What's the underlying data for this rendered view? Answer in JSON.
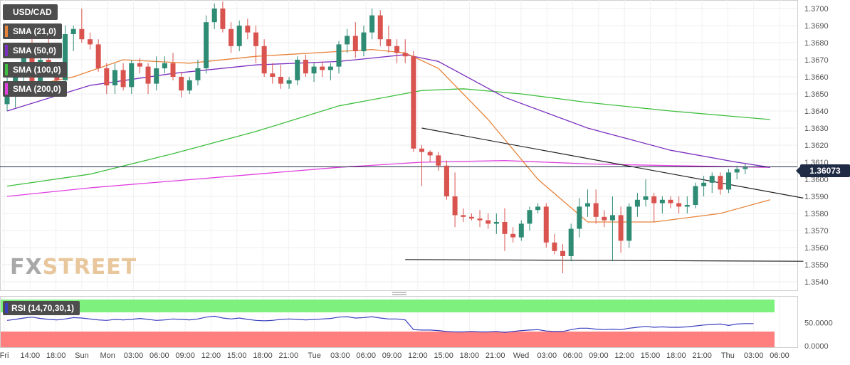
{
  "chart_data": {
    "type": "candlestick",
    "symbol": "USD/CAD",
    "price_axis": {
      "ticks": [
        "1.3700",
        "1.3690",
        "1.3680",
        "1.3670",
        "1.3660",
        "1.3650",
        "1.3640",
        "1.3630",
        "1.3620",
        "1.3610",
        "1.3600",
        "1.3590",
        "1.3580",
        "1.3570",
        "1.3560",
        "1.3550",
        "1.3540"
      ],
      "range": [
        1.3535,
        1.3705
      ]
    },
    "last_price_label": "1.36073",
    "last_price": 1.36073,
    "time_axis_labels": [
      "Fri",
      "14:00",
      "18:00",
      "Sun",
      "Mon",
      "03:00",
      "06:00",
      "09:00",
      "12:00",
      "15:00",
      "18:00",
      "21:00",
      "Tue",
      "03:00",
      "06:00",
      "09:00",
      "12:00",
      "15:00",
      "18:00",
      "21:00",
      "Wed",
      "03:00",
      "06:00",
      "09:00",
      "12:00",
      "15:00",
      "18:00",
      "21:00",
      "Thu",
      "03:00",
      "06:00"
    ],
    "legend": [
      {
        "label": "USD/CAD",
        "color": "#4d4d4d"
      },
      {
        "label": "SMA (21,0)",
        "color": "#e8833a"
      },
      {
        "label": "SMA (50,0)",
        "color": "#7b2fbe"
      },
      {
        "label": "SMA (100,0)",
        "color": "#3fbf3f"
      },
      {
        "label": "SMA (200,0)",
        "color": "#e040e0"
      }
    ],
    "colors": {
      "up": "#2e8b74",
      "down": "#d9534f",
      "sma21": "#e8833a",
      "sma50": "#7b2fbe",
      "sma100": "#3fbf3f",
      "sma200": "#e040e0",
      "trendline": "#222222",
      "rsi_line": "#3a3fbf",
      "rsi_top_band": "#7ef07e",
      "rsi_bottom_band": "#ff7f7f"
    },
    "candles": [
      [
        1.3644,
        1.366,
        1.364,
        1.365
      ],
      [
        1.365,
        1.3668,
        1.3642,
        1.3665
      ],
      [
        1.3665,
        1.368,
        1.3655,
        1.3672
      ],
      [
        1.3672,
        1.3682,
        1.365,
        1.3655
      ],
      [
        1.3655,
        1.368,
        1.3652,
        1.367
      ],
      [
        1.367,
        1.3688,
        1.366,
        1.3663
      ],
      [
        1.3663,
        1.3667,
        1.3652,
        1.3658
      ],
      [
        1.3658,
        1.369,
        1.3655,
        1.3685
      ],
      [
        1.3685,
        1.369,
        1.3675,
        1.3688
      ],
      [
        1.3688,
        1.37,
        1.368,
        1.3682
      ],
      [
        1.3682,
        1.3686,
        1.3676,
        1.3679
      ],
      [
        1.3679,
        1.3682,
        1.3663,
        1.3665
      ],
      [
        1.3665,
        1.3668,
        1.365,
        1.3655
      ],
      [
        1.3655,
        1.3668,
        1.365,
        1.3664
      ],
      [
        1.3664,
        1.3668,
        1.3652,
        1.3654
      ],
      [
        1.3654,
        1.367,
        1.365,
        1.3668
      ],
      [
        1.3668,
        1.3671,
        1.3662,
        1.3666
      ],
      [
        1.3666,
        1.3668,
        1.365,
        1.3656
      ],
      [
        1.3656,
        1.3672,
        1.3652,
        1.3665
      ],
      [
        1.3665,
        1.3672,
        1.3662,
        1.3668
      ],
      [
        1.3668,
        1.3674,
        1.3658,
        1.366
      ],
      [
        1.366,
        1.3663,
        1.3648,
        1.3652
      ],
      [
        1.3652,
        1.366,
        1.365,
        1.3658
      ],
      [
        1.3658,
        1.367,
        1.3655,
        1.3665
      ],
      [
        1.3665,
        1.3696,
        1.3662,
        1.3692
      ],
      [
        1.3692,
        1.3703,
        1.3688,
        1.37
      ],
      [
        1.37,
        1.3704,
        1.3686,
        1.3688
      ],
      [
        1.3688,
        1.3692,
        1.3674,
        1.3678
      ],
      [
        1.3678,
        1.3693,
        1.3675,
        1.369
      ],
      [
        1.369,
        1.3694,
        1.3682,
        1.3686
      ],
      [
        1.3686,
        1.369,
        1.3668,
        1.3678
      ],
      [
        1.3678,
        1.3682,
        1.366,
        1.3662
      ],
      [
        1.3662,
        1.3668,
        1.3656,
        1.366
      ],
      [
        1.366,
        1.3667,
        1.3653,
        1.3656
      ],
      [
        1.3656,
        1.366,
        1.3653,
        1.3658
      ],
      [
        1.3658,
        1.3672,
        1.3655,
        1.367
      ],
      [
        1.367,
        1.3673,
        1.366,
        1.3662
      ],
      [
        1.3662,
        1.3668,
        1.3657,
        1.3666
      ],
      [
        1.3666,
        1.3669,
        1.366,
        1.3664
      ],
      [
        1.3664,
        1.3668,
        1.3658,
        1.3666
      ],
      [
        1.3666,
        1.3681,
        1.3662,
        1.3679
      ],
      [
        1.3679,
        1.3688,
        1.3674,
        1.3684
      ],
      [
        1.3684,
        1.3692,
        1.3671,
        1.3675
      ],
      [
        1.3675,
        1.369,
        1.3672,
        1.3686
      ],
      [
        1.3686,
        1.37,
        1.3682,
        1.3696
      ],
      [
        1.3696,
        1.3699,
        1.3678,
        1.3682
      ],
      [
        1.3682,
        1.369,
        1.3674,
        1.3678
      ],
      [
        1.3678,
        1.3682,
        1.3668,
        1.3674
      ],
      [
        1.3674,
        1.3682,
        1.3668,
        1.3672
      ],
      [
        1.3672,
        1.3675,
        1.3616,
        1.3618
      ],
      [
        1.3618,
        1.362,
        1.3596,
        1.3616
      ],
      [
        1.3616,
        1.3617,
        1.361,
        1.3614
      ],
      [
        1.3614,
        1.3616,
        1.3605,
        1.3608
      ],
      [
        1.3608,
        1.3611,
        1.3588,
        1.359
      ],
      [
        1.359,
        1.3604,
        1.3572,
        1.3579
      ],
      [
        1.3579,
        1.3583,
        1.3575,
        1.3578
      ],
      [
        1.3578,
        1.358,
        1.3576,
        1.3577
      ],
      [
        1.3577,
        1.3582,
        1.3572,
        1.3576
      ],
      [
        1.3576,
        1.358,
        1.3571,
        1.3574
      ],
      [
        1.3574,
        1.358,
        1.3568,
        1.3575
      ],
      [
        1.3575,
        1.3583,
        1.3558,
        1.3568
      ],
      [
        1.3568,
        1.3572,
        1.3563,
        1.3566
      ],
      [
        1.3566,
        1.3576,
        1.3564,
        1.3574
      ],
      [
        1.3574,
        1.3584,
        1.357,
        1.3582
      ],
      [
        1.3582,
        1.3586,
        1.358,
        1.3584
      ],
      [
        1.3584,
        1.3586,
        1.356,
        1.3563
      ],
      [
        1.3563,
        1.3568,
        1.3556,
        1.3558
      ],
      [
        1.3558,
        1.3562,
        1.3545,
        1.3555
      ],
      [
        1.3555,
        1.3574,
        1.3552,
        1.3571
      ],
      [
        1.3571,
        1.3589,
        1.3566,
        1.3584
      ],
      [
        1.3584,
        1.3594,
        1.3578,
        1.3586
      ],
      [
        1.3586,
        1.3594,
        1.3574,
        1.3578
      ],
      [
        1.3578,
        1.3582,
        1.3572,
        1.3576
      ],
      [
        1.3576,
        1.359,
        1.3552,
        1.3579
      ],
      [
        1.3579,
        1.3584,
        1.3557,
        1.3564
      ],
      [
        1.3564,
        1.3586,
        1.356,
        1.3584
      ],
      [
        1.3584,
        1.3592,
        1.3578,
        1.3588
      ],
      [
        1.3588,
        1.36,
        1.3584,
        1.359
      ],
      [
        1.359,
        1.3592,
        1.3575,
        1.3586
      ],
      [
        1.3586,
        1.359,
        1.358,
        1.3588
      ],
      [
        1.3588,
        1.359,
        1.3583,
        1.3586
      ],
      [
        1.3586,
        1.359,
        1.358,
        1.3584
      ],
      [
        1.3584,
        1.359,
        1.358,
        1.3585
      ],
      [
        1.3585,
        1.3598,
        1.3583,
        1.3596
      ],
      [
        1.3596,
        1.3602,
        1.359,
        1.3598
      ],
      [
        1.3598,
        1.3604,
        1.3592,
        1.3602
      ],
      [
        1.3602,
        1.3604,
        1.3591,
        1.3594
      ],
      [
        1.3594,
        1.3606,
        1.3592,
        1.3604
      ],
      [
        1.3604,
        1.3608,
        1.36,
        1.3606
      ],
      [
        1.3606,
        1.3609,
        1.3603,
        1.3607
      ]
    ],
    "sma21": [
      [
        0,
        1.3652
      ],
      [
        8,
        1.366
      ],
      [
        14,
        1.367
      ],
      [
        22,
        1.3668
      ],
      [
        30,
        1.3672
      ],
      [
        44,
        1.3676
      ],
      [
        48,
        1.3674
      ],
      [
        52,
        1.3665
      ],
      [
        58,
        1.3635
      ],
      [
        64,
        1.36
      ],
      [
        70,
        1.3575
      ],
      [
        78,
        1.3575
      ],
      [
        86,
        1.358
      ],
      [
        92,
        1.3588
      ]
    ],
    "sma50": [
      [
        0,
        1.364
      ],
      [
        10,
        1.3655
      ],
      [
        20,
        1.3662
      ],
      [
        30,
        1.3667
      ],
      [
        40,
        1.3669
      ],
      [
        48,
        1.3673
      ],
      [
        52,
        1.3669
      ],
      [
        60,
        1.3648
      ],
      [
        70,
        1.363
      ],
      [
        80,
        1.3617
      ],
      [
        88,
        1.361
      ],
      [
        92,
        1.3607
      ]
    ],
    "sma100": [
      [
        0,
        1.3596
      ],
      [
        10,
        1.3603
      ],
      [
        20,
        1.3615
      ],
      [
        30,
        1.3628
      ],
      [
        40,
        1.3643
      ],
      [
        50,
        1.3652
      ],
      [
        55,
        1.3653
      ],
      [
        62,
        1.365
      ],
      [
        70,
        1.3645
      ],
      [
        80,
        1.364
      ],
      [
        92,
        1.3635
      ]
    ],
    "sma200": [
      [
        0,
        1.359
      ],
      [
        10,
        1.3595
      ],
      [
        20,
        1.3599
      ],
      [
        30,
        1.3603
      ],
      [
        40,
        1.3607
      ],
      [
        50,
        1.361
      ],
      [
        60,
        1.3611
      ],
      [
        70,
        1.3609
      ],
      [
        80,
        1.3608
      ],
      [
        92,
        1.3607
      ]
    ],
    "trendline_upper": [
      [
        50,
        1.363
      ],
      [
        96,
        1.3589
      ]
    ],
    "trendline_lower": [
      [
        48,
        1.3553
      ],
      [
        96,
        1.3552
      ]
    ],
    "rsi": {
      "label": "RSI (14,70,30,1)",
      "ticks": [
        "50.0000",
        "0.0000"
      ],
      "values": [
        55,
        57,
        60,
        62,
        59,
        57,
        56,
        58,
        61,
        60,
        58,
        56,
        55,
        57,
        56,
        57,
        59,
        57,
        55,
        56,
        58,
        57,
        56,
        58,
        62,
        64,
        60,
        58,
        60,
        57,
        55,
        54,
        55,
        57,
        58,
        57,
        56,
        57,
        58,
        59,
        62,
        63,
        60,
        61,
        63,
        60,
        58,
        58,
        56,
        35,
        34,
        34,
        33,
        31,
        30,
        30,
        31,
        30,
        30,
        31,
        29,
        31,
        33,
        34,
        35,
        32,
        31,
        31,
        35,
        38,
        38,
        36,
        35,
        36,
        35,
        38,
        40,
        42,
        40,
        41,
        40,
        40,
        41,
        43,
        45,
        46,
        47,
        44,
        47,
        48,
        48
      ]
    }
  },
  "legend_labels": [
    "USD/CAD",
    "SMA (21,0)",
    "SMA (50,0)",
    "SMA (100,0)",
    "SMA (200,0)"
  ],
  "watermark": {
    "part1": "FX",
    "part2": "STREET"
  },
  "price_tag": "1.36073",
  "rsi_label": "RSI (14,70,30,1)"
}
